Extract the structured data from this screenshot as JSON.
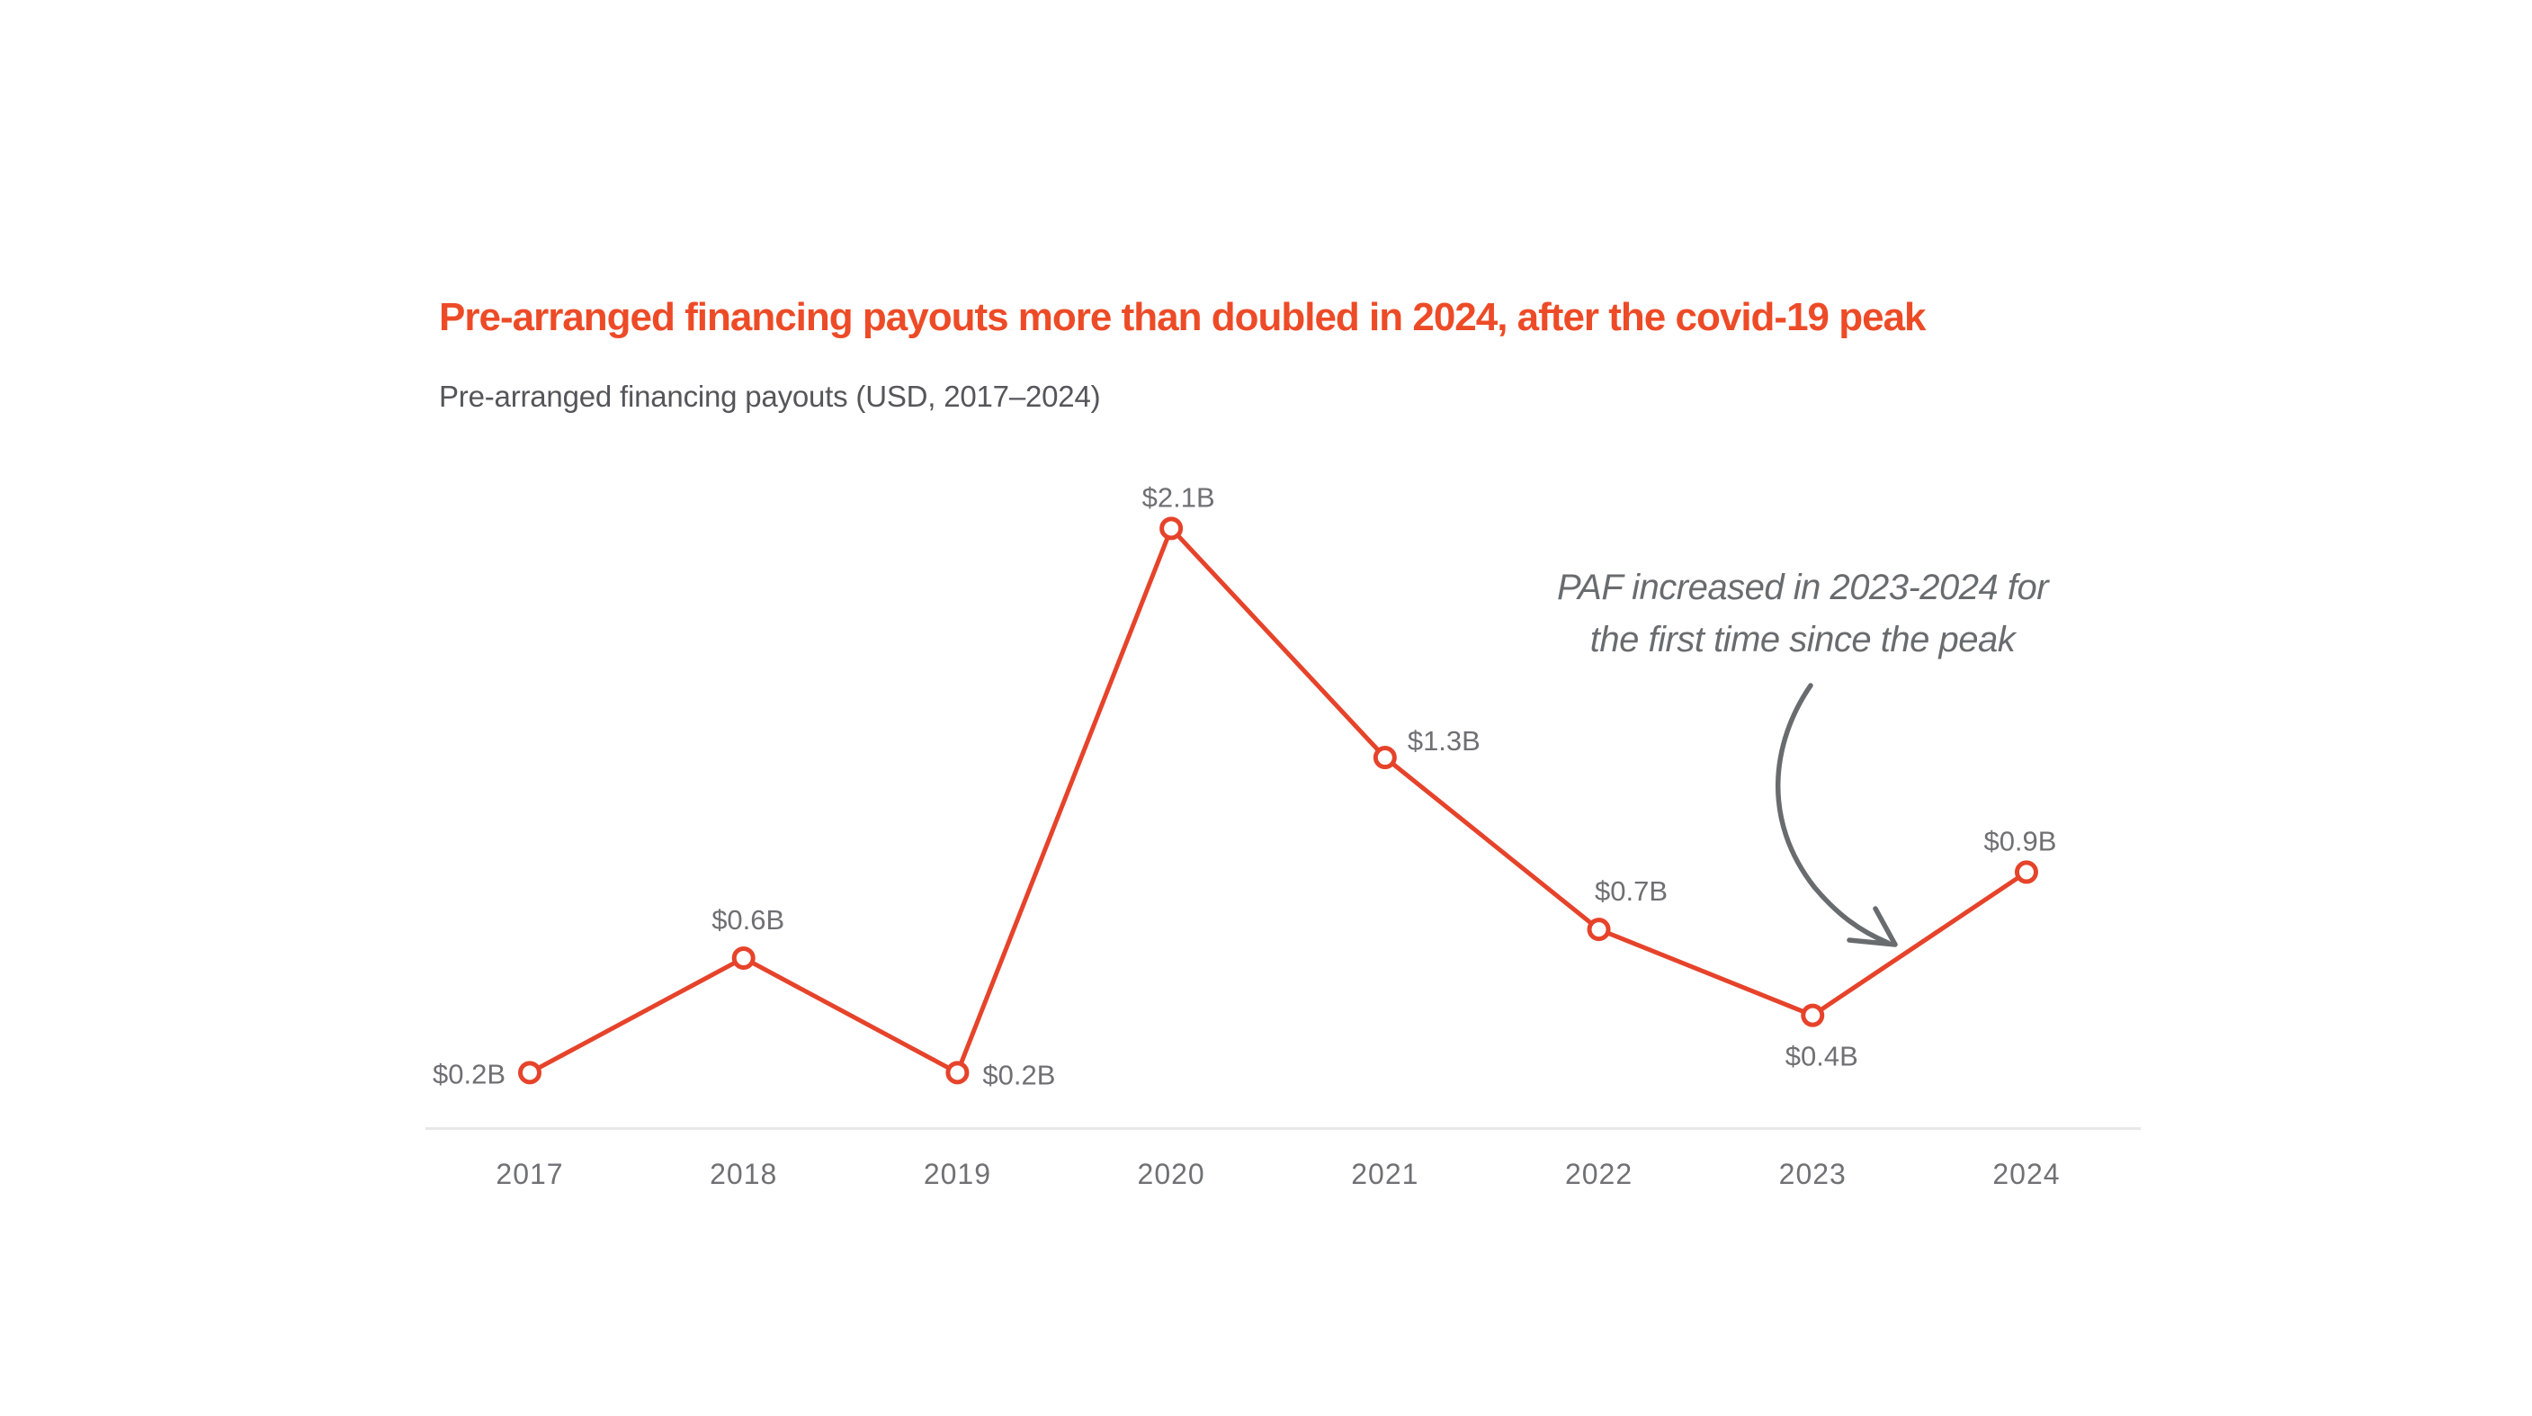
{
  "header": {
    "title": "Pre-arranged financing payouts more than doubled in 2024, after the covid-19 peak",
    "subtitle": "Pre-arranged financing payouts (USD, 2017–2024)"
  },
  "annotation": {
    "line1": "PAF increased in 2023-2024 for",
    "line2": "the first time since the peak",
    "arrow": "curved-arrow-pointing-to-2023-2024-segment"
  },
  "colors": {
    "title_red": "#ed4b27",
    "line_red": "#e6432b",
    "point_fill": "#ffffff",
    "data_label_gray": "#6e7073",
    "tick_label_gray": "#6f7174",
    "subtitle_gray": "#54565a",
    "annotation_gray": "#696c6f",
    "axis_line_gray": "#e8e8e8",
    "background": "#ffffff"
  },
  "chart_data": {
    "type": "line",
    "title": "Pre-arranged financing payouts more than doubled in 2024, after the covid-19 peak",
    "subtitle": "Pre-arranged financing payouts (USD, 2017–2024)",
    "categories": [
      "2017",
      "2018",
      "2019",
      "2020",
      "2021",
      "2022",
      "2023",
      "2024"
    ],
    "series": [
      {
        "name": "Pre-arranged financing payouts (USD billions)",
        "values": [
          0.2,
          0.6,
          0.2,
          2.1,
          1.3,
          0.7,
          0.4,
          0.9
        ],
        "point_labels": [
          "$0.2B",
          "$0.6B",
          "$0.2B",
          "$2.1B",
          "$1.3B",
          "$0.7B",
          "$0.4B",
          "$0.9B"
        ],
        "label_positions": [
          "left",
          "above",
          "right",
          "above",
          "right",
          "above",
          "below",
          "above"
        ]
      }
    ],
    "xlabel": "",
    "ylabel": "",
    "ylim": [
      0,
      2.2
    ],
    "grid": false,
    "legend_position": "none",
    "marker": "open-circle",
    "annotation": "PAF increased in 2023-2024 for the first time since the peak"
  }
}
